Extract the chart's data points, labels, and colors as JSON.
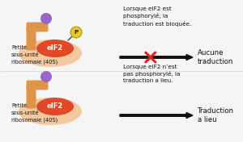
{
  "background_color": "#f5f5f5",
  "ribosome_body_color": "#f5c9a0",
  "ribosome_arm_color": "#e0954a",
  "eif2_color": "#e04828",
  "eif2_label": "eIF2",
  "purple_ball_color": "#9966cc",
  "phospho_circle_color": "#e8c830",
  "phospho_text": "P",
  "label_ribosome": "Petite\nsous-unité\nribosomale (40S)",
  "top_desc": "Lorsque eIF2 est\nphosphorylé, la\ntraduction est bloquée.",
  "top_arrow_label": "Aucune\ntraduction",
  "bottom_desc": "Lorsque eIF2 n’est\npas phosphorylé, la\ntraduction a lieu.",
  "bottom_arrow_label": "Traduction\na lieu",
  "arrow_color": "#111111",
  "cross_color": "#dd2222",
  "text_color": "#111111",
  "font_size_label": 4.8,
  "font_size_eif2": 6.0,
  "font_size_p": 5.0,
  "font_size_desc": 5.2,
  "font_size_arrow_label": 6.2
}
